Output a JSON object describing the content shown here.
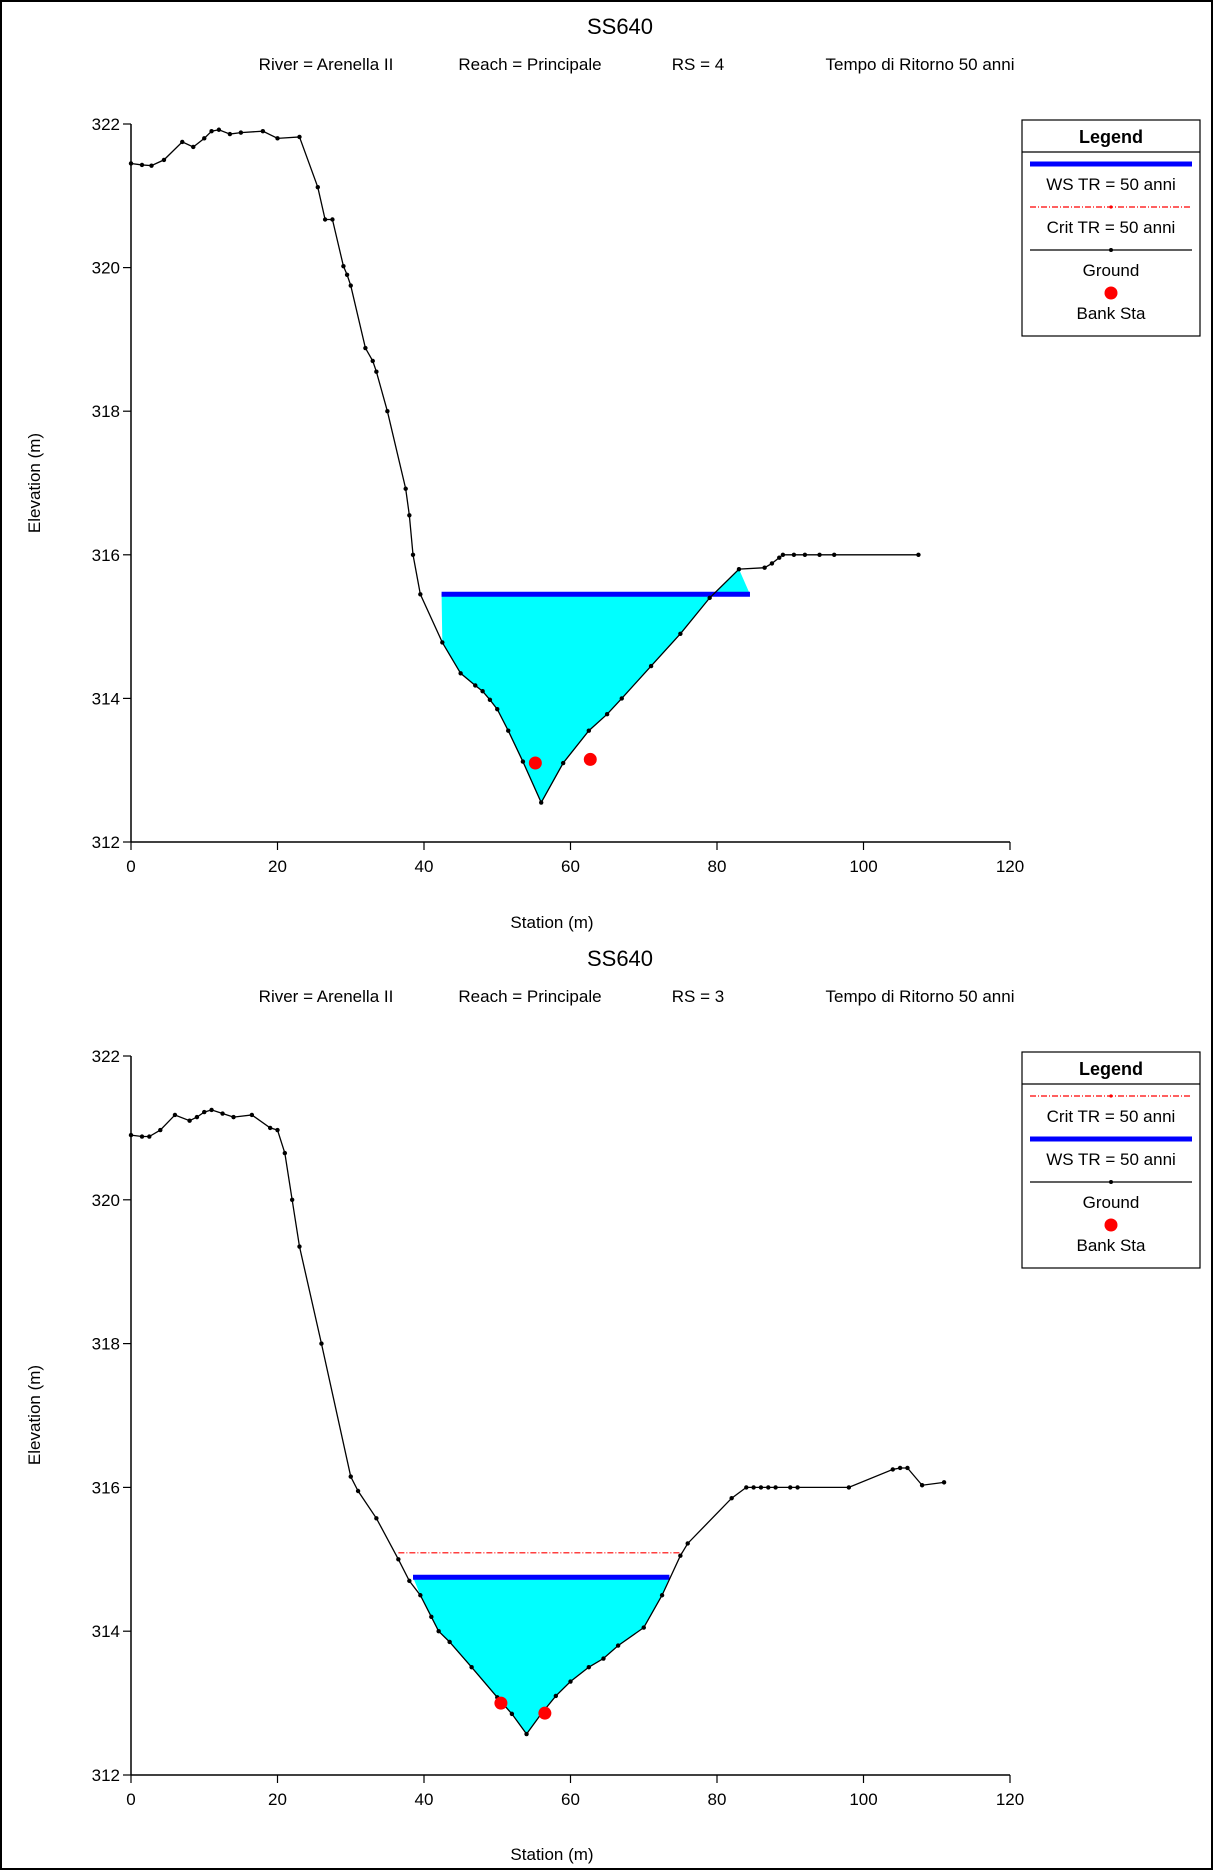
{
  "chart_data": [
    {
      "type": "line",
      "title": "SS640",
      "subtitle": {
        "river": "River = Arenella II",
        "reach": "Reach = Principale",
        "rs": "RS = 4",
        "event": "Tempo di Ritorno 50 anni"
      },
      "xlabel": "Station (m)",
      "ylabel": "Elevation (m)",
      "xlim": [
        0,
        120
      ],
      "ylim": [
        312,
        322
      ],
      "x_ticks": [
        0,
        20,
        40,
        60,
        80,
        100,
        120
      ],
      "y_ticks": [
        312,
        314,
        316,
        318,
        320,
        322
      ],
      "legend": {
        "title": "Legend",
        "placement": "top-right",
        "entries": [
          {
            "label": "WS TR = 50 anni",
            "style": "ws"
          },
          {
            "label": "Crit TR = 50 anni",
            "style": "crit"
          },
          {
            "label": "Ground",
            "style": "ground"
          },
          {
            "label": "Bank Sta",
            "style": "bank"
          }
        ]
      },
      "series": [
        {
          "name": "Ground",
          "color": "#000000",
          "points": [
            [
              0,
              321.45
            ],
            [
              1.5,
              321.43
            ],
            [
              2.8,
              321.42
            ],
            [
              4.5,
              321.5
            ],
            [
              7,
              321.75
            ],
            [
              8.5,
              321.68
            ],
            [
              10,
              321.8
            ],
            [
              11,
              321.9
            ],
            [
              12,
              321.92
            ],
            [
              13.5,
              321.86
            ],
            [
              15,
              321.88
            ],
            [
              18,
              321.9
            ],
            [
              20,
              321.8
            ],
            [
              23,
              321.82
            ],
            [
              25.5,
              321.12
            ],
            [
              26.5,
              320.67
            ],
            [
              27.5,
              320.67
            ],
            [
              29,
              320.02
            ],
            [
              29.5,
              319.9
            ],
            [
              30,
              319.75
            ],
            [
              32,
              318.88
            ],
            [
              33,
              318.7
            ],
            [
              33.5,
              318.55
            ],
            [
              35,
              318
            ],
            [
              37.5,
              316.92
            ],
            [
              38,
              316.55
            ],
            [
              38.5,
              316
            ],
            [
              39.5,
              315.45
            ],
            [
              42.5,
              314.78
            ],
            [
              45,
              314.35
            ],
            [
              47,
              314.18
            ],
            [
              48,
              314.1
            ],
            [
              49,
              313.98
            ],
            [
              50,
              313.85
            ],
            [
              51.5,
              313.55
            ],
            [
              53.5,
              313.12
            ],
            [
              56,
              312.55
            ],
            [
              59,
              313.1
            ],
            [
              62.5,
              313.55
            ],
            [
              65,
              313.78
            ],
            [
              67,
              314
            ],
            [
              71,
              314.45
            ],
            [
              75,
              314.9
            ],
            [
              79,
              315.4
            ],
            [
              83,
              315.8
            ],
            [
              86.5,
              315.82
            ],
            [
              87.5,
              315.88
            ],
            [
              88.5,
              315.96
            ],
            [
              89,
              316
            ],
            [
              90.5,
              316
            ],
            [
              92,
              316
            ],
            [
              94,
              316
            ],
            [
              96,
              316
            ],
            [
              107.5,
              316
            ]
          ]
        },
        {
          "name": "WS TR = 50 anni",
          "color": "#0000ff",
          "elevation": 315.45,
          "x_range": [
            42.4,
            84.5
          ]
        },
        {
          "name": "Crit TR = 50 anni",
          "color": "#ff0000",
          "elevation": 315.45,
          "x_range": [
            42.4,
            84.5
          ]
        },
        {
          "name": "Bank Sta",
          "color": "#ff0000",
          "points": [
            [
              55.2,
              313.1
            ],
            [
              62.7,
              313.15
            ]
          ]
        }
      ],
      "fill_color": "#00ffff"
    },
    {
      "type": "line",
      "title": "SS640",
      "subtitle": {
        "river": "River = Arenella II",
        "reach": "Reach = Principale",
        "rs": "RS = 3",
        "event": "Tempo di Ritorno 50 anni"
      },
      "xlabel": "Station (m)",
      "ylabel": "Elevation (m)",
      "xlim": [
        0,
        120
      ],
      "ylim": [
        312,
        322
      ],
      "x_ticks": [
        0,
        20,
        40,
        60,
        80,
        100,
        120
      ],
      "y_ticks": [
        312,
        314,
        316,
        318,
        320,
        322
      ],
      "legend": {
        "title": "Legend",
        "placement": "top-right",
        "entries": [
          {
            "label": "Crit TR = 50 anni",
            "style": "crit"
          },
          {
            "label": "WS TR = 50 anni",
            "style": "ws"
          },
          {
            "label": "Ground",
            "style": "ground"
          },
          {
            "label": "Bank Sta",
            "style": "bank"
          }
        ]
      },
      "series": [
        {
          "name": "Ground",
          "color": "#000000",
          "points": [
            [
              0,
              320.9
            ],
            [
              1.5,
              320.88
            ],
            [
              2.5,
              320.88
            ],
            [
              4,
              320.97
            ],
            [
              6,
              321.18
            ],
            [
              8,
              321.1
            ],
            [
              9,
              321.15
            ],
            [
              10,
              321.22
            ],
            [
              11,
              321.25
            ],
            [
              12.5,
              321.2
            ],
            [
              14,
              321.15
            ],
            [
              16.5,
              321.18
            ],
            [
              19,
              321
            ],
            [
              20,
              320.97
            ],
            [
              21,
              320.65
            ],
            [
              22,
              320
            ],
            [
              23,
              319.35
            ],
            [
              26,
              318
            ],
            [
              30,
              316.15
            ],
            [
              31,
              315.95
            ],
            [
              33.5,
              315.57
            ],
            [
              36.5,
              315
            ],
            [
              38,
              314.7
            ],
            [
              39.5,
              314.5
            ],
            [
              41,
              314.2
            ],
            [
              42,
              314
            ],
            [
              43.5,
              313.85
            ],
            [
              46.5,
              313.5
            ],
            [
              50,
              313.08
            ],
            [
              52,
              312.85
            ],
            [
              54,
              312.57
            ],
            [
              56,
              312.85
            ],
            [
              58,
              313.1
            ],
            [
              60,
              313.3
            ],
            [
              62.5,
              313.5
            ],
            [
              64.5,
              313.62
            ],
            [
              66.5,
              313.8
            ],
            [
              70,
              314.05
            ],
            [
              72.5,
              314.5
            ],
            [
              75,
              315.05
            ],
            [
              76,
              315.22
            ],
            [
              82,
              315.85
            ],
            [
              84,
              316
            ],
            [
              85,
              316
            ],
            [
              86,
              316
            ],
            [
              87,
              316
            ],
            [
              88,
              316
            ],
            [
              90,
              316
            ],
            [
              91,
              316
            ],
            [
              98,
              316
            ],
            [
              104,
              316.25
            ],
            [
              105,
              316.27
            ],
            [
              106,
              316.27
            ],
            [
              108,
              316.03
            ],
            [
              111,
              316.07
            ]
          ]
        },
        {
          "name": "Crit TR = 50 anni",
          "color": "#ff0000",
          "elevation": 315.09,
          "x_range": [
            36.5,
            75.2
          ]
        },
        {
          "name": "WS TR = 50 anni",
          "color": "#0000ff",
          "elevation": 314.75,
          "x_range": [
            38.5,
            73.5
          ]
        },
        {
          "name": "Bank Sta",
          "color": "#ff0000",
          "points": [
            [
              50.5,
              313.0
            ],
            [
              56.5,
              312.86
            ]
          ]
        }
      ],
      "fill_color": "#00ffff"
    }
  ]
}
